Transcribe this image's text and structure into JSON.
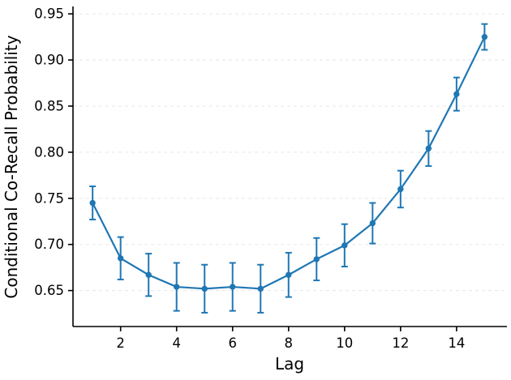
{
  "figure": {
    "background": "#ffffff"
  },
  "chart_data": {
    "type": "line",
    "title": "",
    "xlabel": "Lag",
    "ylabel": "Conditional Co-Recall Probability",
    "x": [
      1,
      2,
      3,
      4,
      5,
      6,
      7,
      8,
      9,
      10,
      11,
      12,
      13,
      14,
      15
    ],
    "series": [
      {
        "name": "conditional-co-recall-probability",
        "values": [
          0.745,
          0.685,
          0.667,
          0.654,
          0.652,
          0.654,
          0.652,
          0.667,
          0.684,
          0.699,
          0.723,
          0.76,
          0.804,
          0.863,
          0.925
        ],
        "errors": [
          0.018,
          0.023,
          0.023,
          0.026,
          0.026,
          0.026,
          0.026,
          0.024,
          0.023,
          0.023,
          0.022,
          0.02,
          0.019,
          0.018,
          0.014
        ]
      }
    ],
    "x_ticks": [
      2,
      4,
      6,
      8,
      10,
      12,
      14
    ],
    "y_ticks": [
      0.65,
      0.7,
      0.75,
      0.8,
      0.85,
      0.9,
      0.95
    ],
    "xlim": [
      0.3,
      15.8
    ],
    "ylim": [
      0.611,
      0.958
    ],
    "grid": "horizontal-dashed",
    "legend": "none",
    "line_color": "#1f77b4",
    "marker": "circle",
    "grid_color": "#e7e7e7",
    "axis_color": "#000000",
    "tick_label_color": "#000000"
  }
}
